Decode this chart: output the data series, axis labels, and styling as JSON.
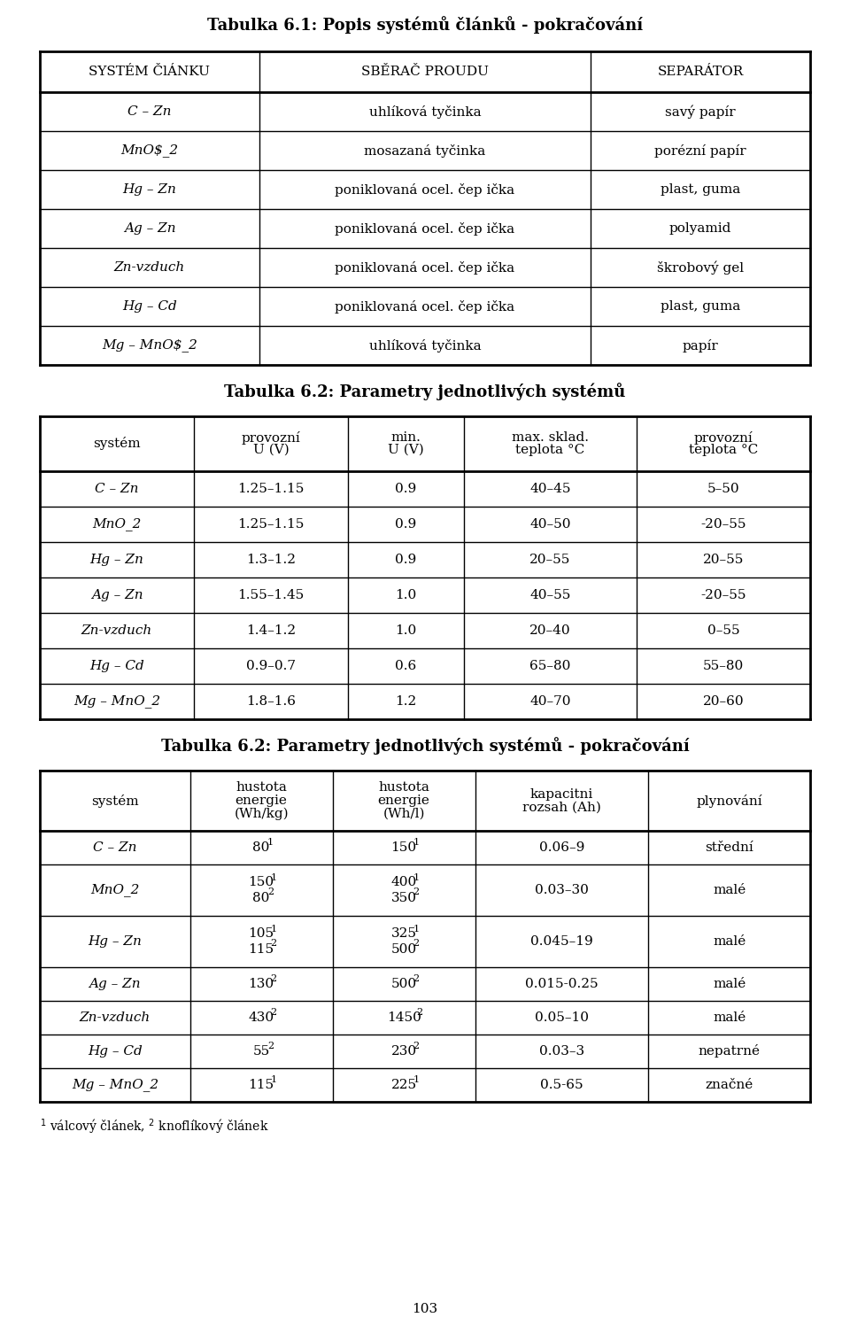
{
  "title1": "Tabulka 6.1: Popis systémů článků - pokračování",
  "title2": "Tabulka 6.2: Parametry jednotlivých systémů",
  "title3": "Tabulka 6.2: Parametry jednotlivých systémů - pokračování",
  "page_number": "103",
  "table1_headers": [
    "SYSTÉM ČlÁNKU",
    "SBĚRAČ PROUDU",
    "SEPARÁTOR"
  ],
  "table1_rows": [
    [
      "C – Zn",
      "uhlíková tyčinka",
      "savý papír"
    ],
    [
      "MnO_2",
      "mosazaná tyčinka",
      "porézní papír"
    ],
    [
      "Hg – Zn",
      "poniklovaná ocel. čep ička",
      "plast, guma"
    ],
    [
      "Ag – Zn",
      "poniklovaná ocel. čep ička",
      "polyamid"
    ],
    [
      "Zn-vzduch",
      "poniklovaná ocel. čep ička",
      "škrobový gel"
    ],
    [
      "Hg – Cd",
      "poniklovaná ocel. čep ička",
      "plast, guma"
    ],
    [
      "Mg – MnO_2",
      "uhlíková tyčinka",
      "papír"
    ]
  ],
  "table1_italic_col0": true,
  "table2_headers_line1": [
    "systém",
    "provozní",
    "min.",
    "max. sklad.",
    "provozní"
  ],
  "table2_headers_line2": [
    "",
    "U (V)",
    "U (V)",
    "teplota °C",
    "teplota °C"
  ],
  "table2_rows": [
    [
      "C – Zn",
      "1.25–1.15",
      "0.9",
      "40–45",
      "5–50"
    ],
    [
      "MnO_2",
      "1.25–1.15",
      "0.9",
      "40–50",
      "-20–55"
    ],
    [
      "Hg – Zn",
      "1.3–1.2",
      "0.9",
      "20–55",
      "20–55"
    ],
    [
      "Ag – Zn",
      "1.55–1.45",
      "1.0",
      "40–55",
      "-20–55"
    ],
    [
      "Zn-vzduch",
      "1.4–1.2",
      "1.0",
      "20–40",
      "0–55"
    ],
    [
      "Hg – Cd",
      "0.9–0.7",
      "0.6",
      "65–80",
      "55–80"
    ],
    [
      "Mg – MnO_2",
      "1.8–1.6",
      "1.2",
      "40–70",
      "20–60"
    ]
  ],
  "table3_headers_line1": [
    "systém",
    "hustota",
    "hustota",
    "kapacitni",
    "plynování"
  ],
  "table3_headers_line2": [
    "",
    "energie",
    "energie",
    "rozsah (Ah)",
    ""
  ],
  "table3_headers_line3": [
    "",
    "(Wh/kg)",
    "(Wh/l)",
    "",
    ""
  ],
  "table3_rows": [
    [
      "C – Zn",
      [
        "80^1"
      ],
      [
        "150^1"
      ],
      "0.06–9",
      "střední"
    ],
    [
      "MnO_2",
      [
        "150^1",
        "80^2"
      ],
      [
        "400^1",
        "350^2"
      ],
      "0.03–30",
      "malé"
    ],
    [
      "Hg – Zn",
      [
        "105^1",
        "115^2"
      ],
      [
        "325^1",
        "500^2"
      ],
      "0.045–19",
      "malé"
    ],
    [
      "Ag – Zn",
      [
        "130^2"
      ],
      [
        "500^2"
      ],
      "0.015-0.25",
      "malé"
    ],
    [
      "Zn-vzduch",
      [
        "430^2"
      ],
      [
        "1450^2"
      ],
      "0.05–10",
      "malé"
    ],
    [
      "Hg – Cd",
      [
        "55^2"
      ],
      [
        "230^2"
      ],
      "0.03–3",
      "nepatrné"
    ],
    [
      "Mg – MnO_2",
      [
        "115^1"
      ],
      [
        "225^1"
      ],
      "0.5-65",
      "značné"
    ]
  ],
  "bg_color": "#ffffff",
  "line_color": "#000000",
  "text_color": "#000000"
}
